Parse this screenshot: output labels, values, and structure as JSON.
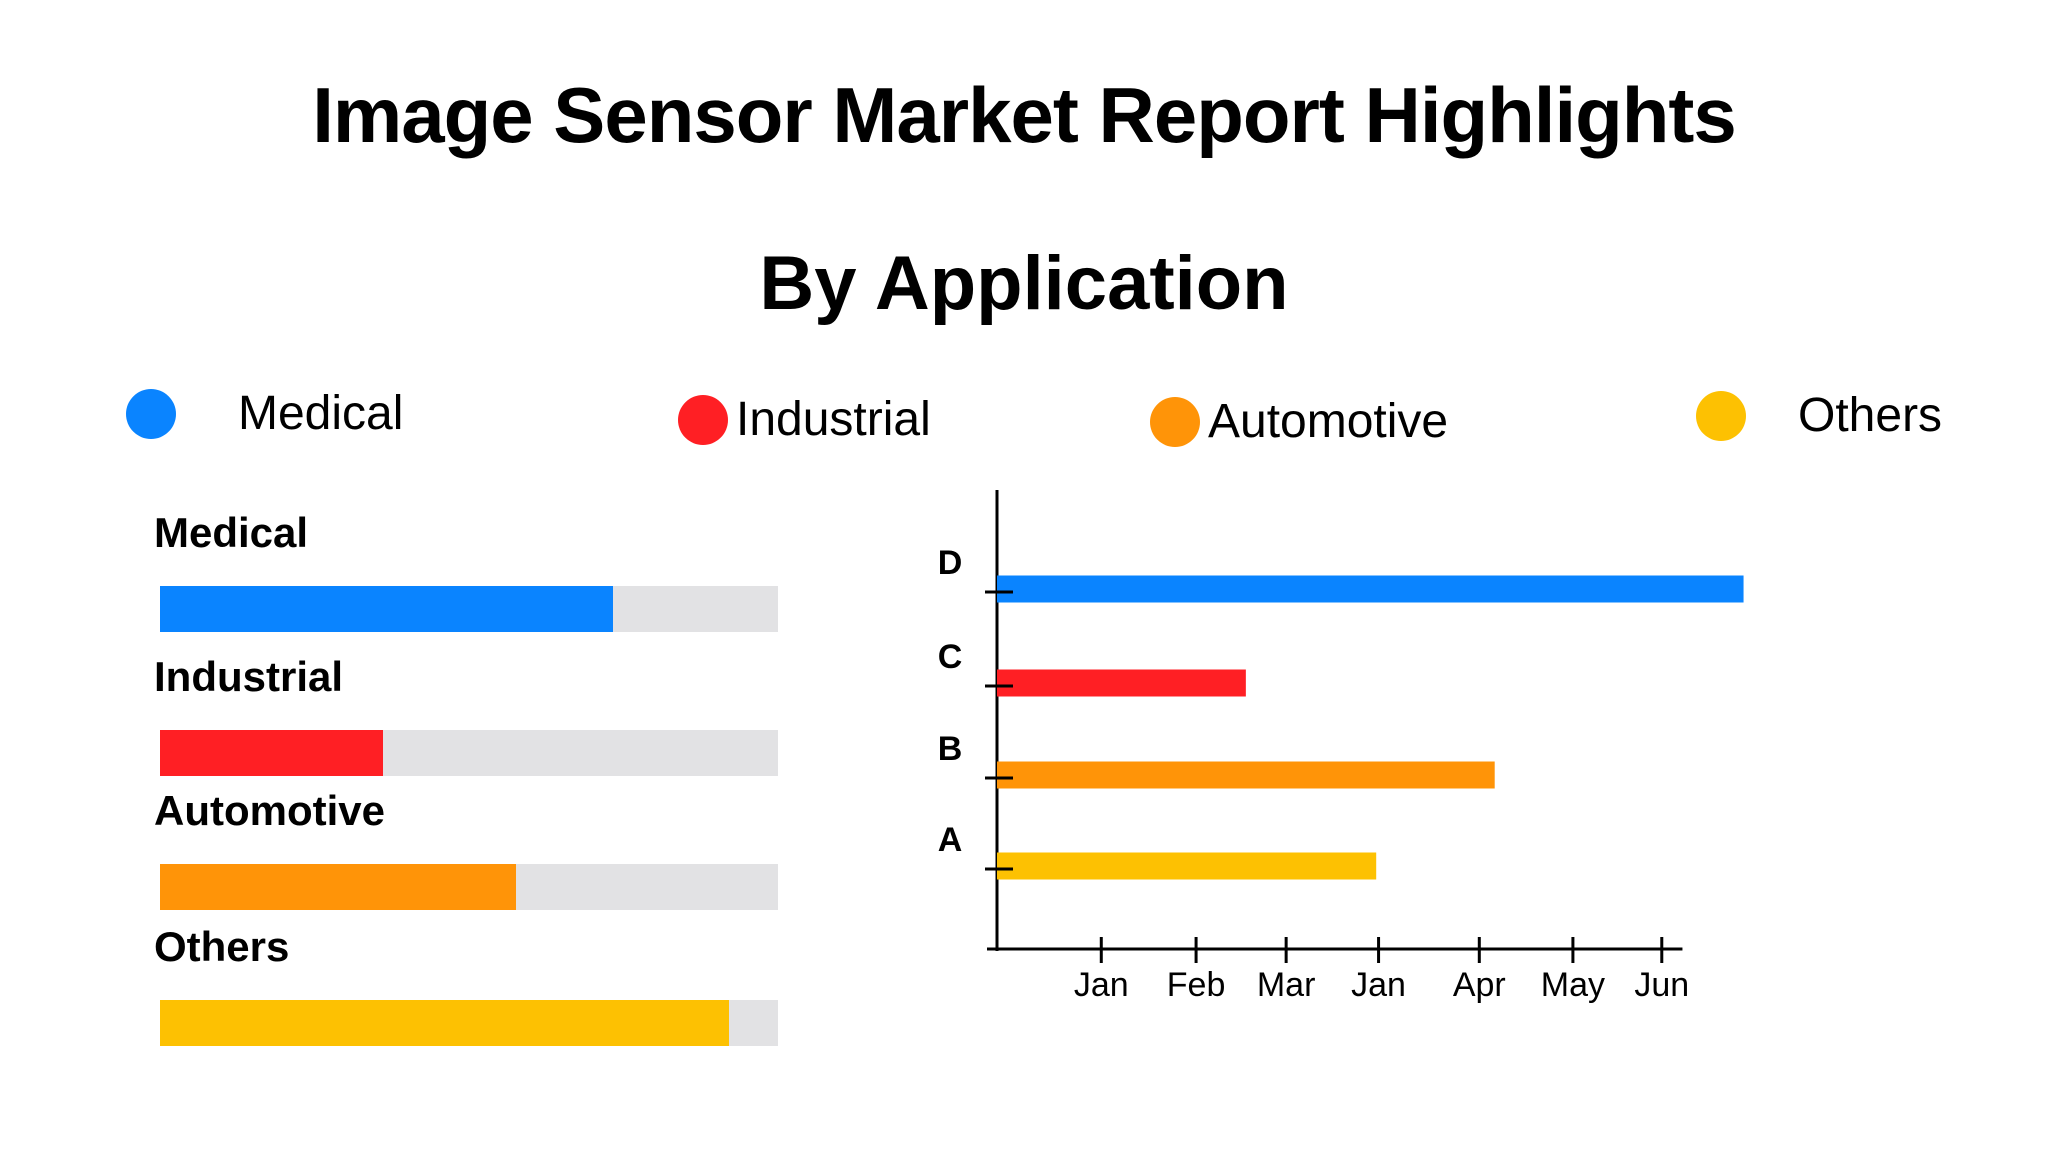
{
  "title": "Image Sensor Market Report Highlights",
  "subtitle": "By Application",
  "legend": [
    {
      "label": "Medical",
      "color": "#0a84ff"
    },
    {
      "label": "Industrial",
      "color": "#ff1f24"
    },
    {
      "label": "Automotive",
      "color": "#ff9408"
    },
    {
      "label": "Others",
      "color": "#fdc102"
    }
  ],
  "progress": [
    {
      "label": "Medical",
      "value": 0.733,
      "color": "#0a84ff"
    },
    {
      "label": "Industrial",
      "value": 0.361,
      "color": "#ff1f24"
    },
    {
      "label": "Automotive",
      "value": 0.576,
      "color": "#ff9408"
    },
    {
      "label": "Others",
      "value": 0.92,
      "color": "#fdc102"
    }
  ],
  "chart_data": {
    "type": "bar",
    "orientation": "horizontal",
    "categories": [
      "A",
      "B",
      "C",
      "D"
    ],
    "x_tick_labels": [
      "Jan",
      "Feb",
      "Mar",
      "Jan",
      "Apr",
      "May",
      "Jun"
    ],
    "values": [
      3.2,
      4.2,
      2.1,
      6.3
    ],
    "colors": [
      "#fdc102",
      "#ff9408",
      "#ff1f24",
      "#0a84ff"
    ],
    "xlim": [
      0,
      7
    ],
    "grid": false
  }
}
